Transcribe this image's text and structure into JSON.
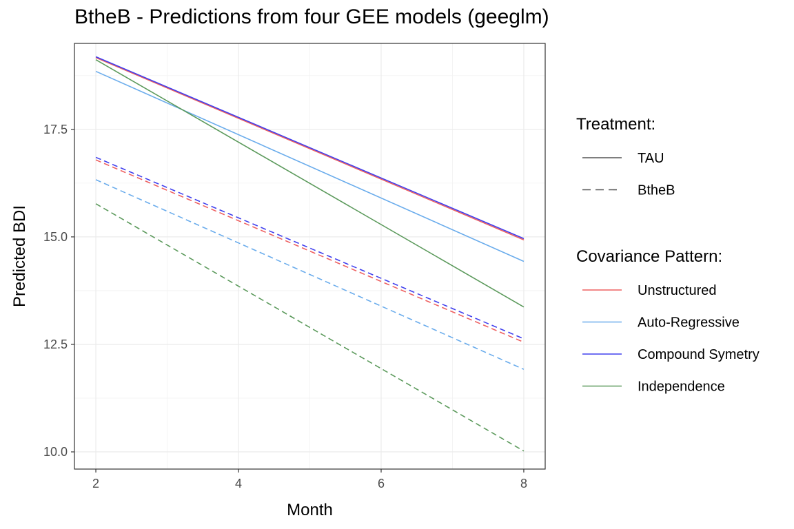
{
  "chart_data": {
    "type": "line",
    "title": "BtheB - Predictions from four GEE models (geeglm)",
    "xlabel": "Month",
    "ylabel": "Predicted BDI",
    "xlim": [
      1.7,
      8.3
    ],
    "ylim": [
      9.6,
      19.5
    ],
    "xticks": [
      2,
      4,
      6,
      8
    ],
    "xtick_labels": [
      "2",
      "4",
      "6",
      "8"
    ],
    "yticks": [
      10.0,
      12.5,
      15.0,
      17.5
    ],
    "ytick_labels": [
      "10.0",
      "12.5",
      "15.0",
      "17.5"
    ],
    "grid": true,
    "x": [
      2,
      8
    ],
    "legends": [
      {
        "title": "Treatment:",
        "entries": [
          {
            "label": "TAU",
            "dash": "solid",
            "color": "#555555"
          },
          {
            "label": "BtheB",
            "dash": "dashed",
            "color": "#555555"
          }
        ]
      },
      {
        "title": "Covariance Pattern:",
        "entries": [
          {
            "label": "Unstructured",
            "color": "#EE6060"
          },
          {
            "label": "Auto-Regressive",
            "color": "#6AACEC"
          },
          {
            "label": "Compound Symetry",
            "color": "#4040EE"
          },
          {
            "label": "Independence",
            "color": "#5C9A5C"
          }
        ]
      }
    ],
    "series": [
      {
        "treatment": "TAU",
        "covariance": "Unstructured",
        "values": [
          19.17,
          14.93
        ]
      },
      {
        "treatment": "TAU",
        "covariance": "Auto-Regressive",
        "values": [
          18.85,
          14.43
        ]
      },
      {
        "treatment": "TAU",
        "covariance": "Compound Symetry",
        "values": [
          19.19,
          14.96
        ]
      },
      {
        "treatment": "TAU",
        "covariance": "Independence",
        "values": [
          19.12,
          13.37
        ]
      },
      {
        "treatment": "BtheB",
        "covariance": "Unstructured",
        "values": [
          16.79,
          12.55
        ]
      },
      {
        "treatment": "BtheB",
        "covariance": "Auto-Regressive",
        "values": [
          16.33,
          11.92
        ]
      },
      {
        "treatment": "BtheB",
        "covariance": "Compound Symetry",
        "values": [
          16.85,
          12.63
        ]
      },
      {
        "treatment": "BtheB",
        "covariance": "Independence",
        "values": [
          15.77,
          10.02
        ]
      }
    ]
  }
}
